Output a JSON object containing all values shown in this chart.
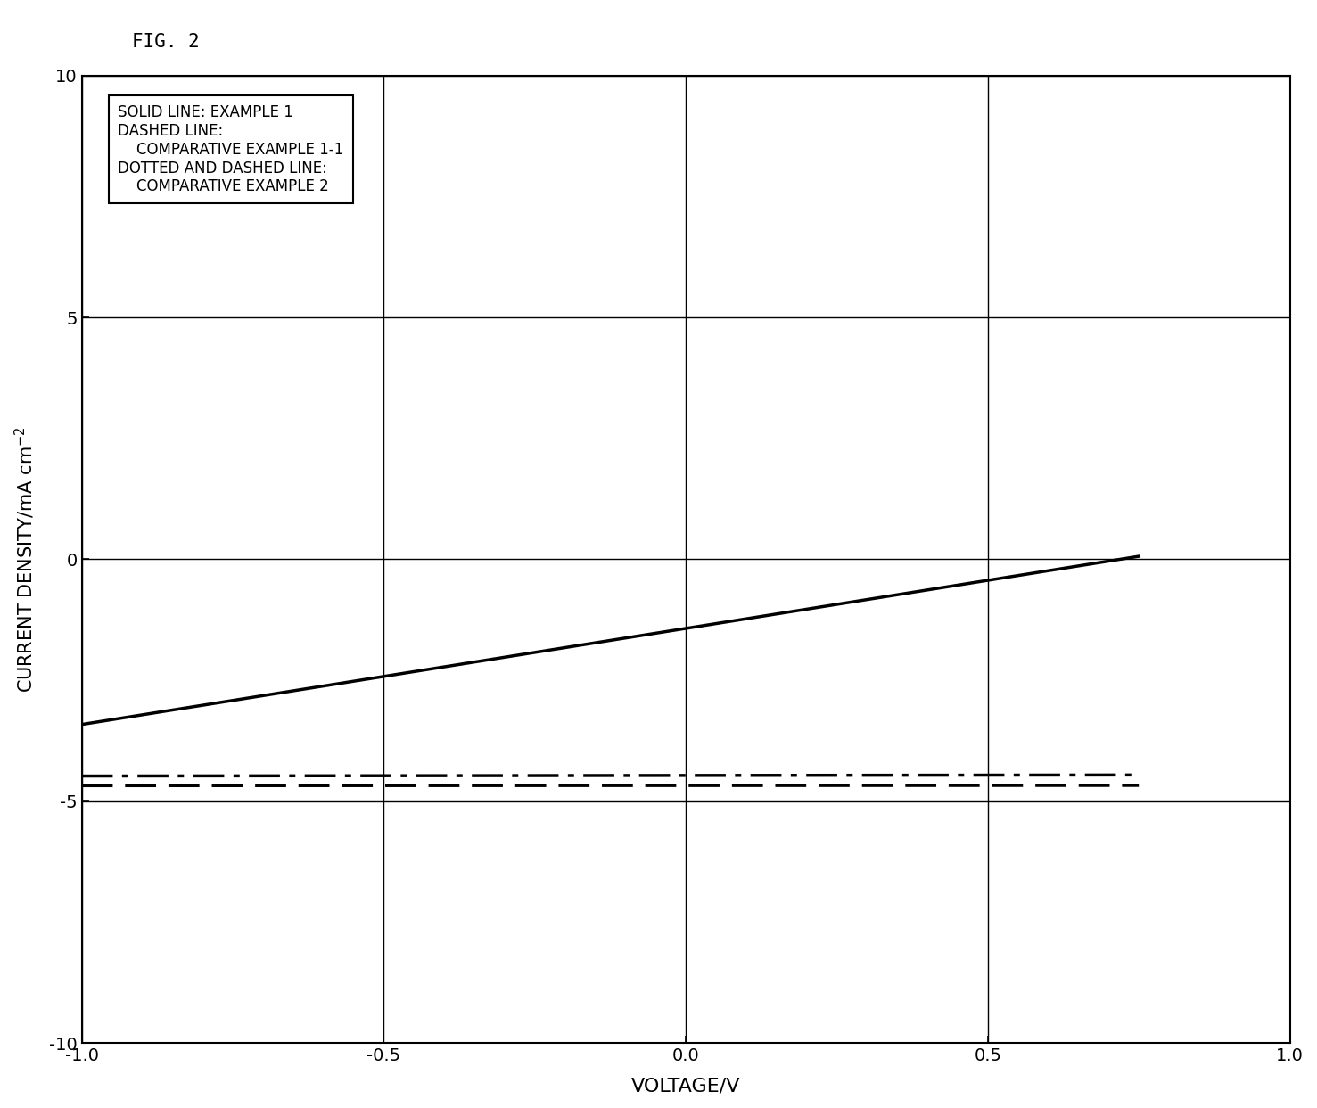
{
  "title": "FIG. 2",
  "xlabel": "VOLTAGE/V",
  "ylabel": "CURRENT DENSITY/mA cm$^{-2}$",
  "xlim": [
    -1.0,
    1.0
  ],
  "ylim": [
    -10,
    10
  ],
  "xticks": [
    -1.0,
    -0.5,
    0.0,
    0.5,
    1.0
  ],
  "yticks": [
    -10,
    -5,
    0,
    5,
    10
  ],
  "xtick_labels": [
    "-1.0",
    "-0.5",
    "0.0",
    "0.5",
    "1.0"
  ],
  "ytick_labels": [
    "-10",
    "-5",
    "0",
    "5",
    "10"
  ],
  "background_color": "#ffffff",
  "line_color": "#000000",
  "grid_color": "#000000",
  "font_size": 14,
  "legend_str": "SOLID LINE: EXAMPLE 1\nDASHED LINE:\n    COMPARATIVE EXAMPLE 1-1\nDOTTED AND DASHED LINE:\n    COMPARATIVE EXAMPLE 2"
}
